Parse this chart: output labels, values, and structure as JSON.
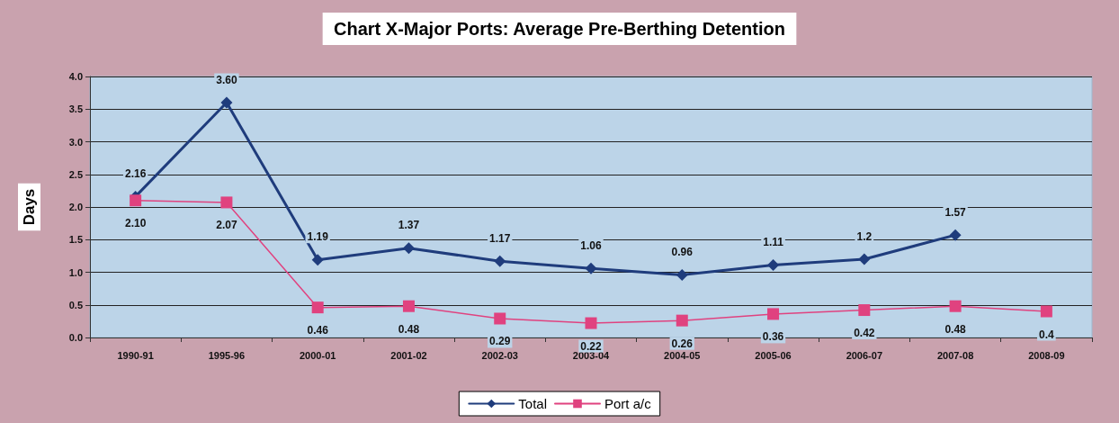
{
  "chart_data": {
    "type": "line",
    "title": "Chart X-Major Ports: Average Pre-Berthing Detention",
    "ylabel": "Days",
    "categories": [
      "1990-91",
      "1995-96",
      "2000-01",
      "2001-02",
      "2002-03",
      "2003-04",
      "2004-05",
      "2005-06",
      "2006-07",
      "2007-08",
      "2008-09"
    ],
    "series": [
      {
        "name": "Total",
        "color": "#1f3c7c",
        "values": [
          2.16,
          3.6,
          1.19,
          1.37,
          1.17,
          1.06,
          0.96,
          1.11,
          1.2,
          1.57,
          null
        ],
        "value_labels": [
          "2.16",
          "3.60",
          "1.19",
          "1.37",
          "1.17",
          "1.06",
          "0.96",
          "1.11",
          "1.2",
          "1.57",
          null
        ],
        "marker": "diamond"
      },
      {
        "name": "Port a/c",
        "color": "#e0427f",
        "values": [
          2.1,
          2.07,
          0.46,
          0.48,
          0.29,
          0.22,
          0.26,
          0.36,
          0.42,
          0.48,
          0.4
        ],
        "value_labels": [
          "2.10",
          "2.07",
          "0.46",
          "0.48",
          "0.29",
          "0.22",
          "0.26",
          "0.36",
          "0.42",
          "0.48",
          "0.4"
        ],
        "marker": "square",
        "line_style": "solid"
      }
    ],
    "ylim": [
      0,
      4
    ],
    "yticks": [
      {
        "value": 0,
        "label": "0.0"
      },
      0.5,
      {
        "value": 1,
        "label": "1.0"
      },
      1.5,
      {
        "value": 2,
        "label": "2.0"
      },
      2.5,
      {
        "value": 3,
        "label": "3.0"
      },
      3.5,
      {
        "value": 4,
        "label": "4.0"
      }
    ],
    "grid": "y",
    "legend": "bottom"
  }
}
